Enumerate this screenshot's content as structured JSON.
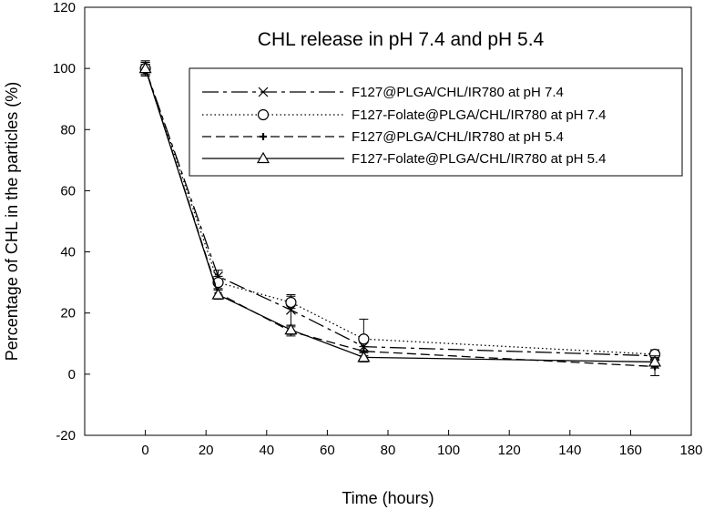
{
  "chart_data": {
    "type": "line",
    "title": "CHL release in pH 7.4 and pH 5.4",
    "xlabel": "Time (hours)",
    "ylabel": "Percentage of CHL in the particles (%)",
    "xlim": [
      -20,
      180
    ],
    "ylim": [
      -20,
      120
    ],
    "xticks": [
      0,
      20,
      40,
      60,
      80,
      100,
      120,
      140,
      160,
      180
    ],
    "yticks": [
      -20,
      0,
      20,
      40,
      60,
      80,
      100,
      120
    ],
    "legend_position": "top-right",
    "series": [
      {
        "name": "F127@PLGA/CHL/IR780 at pH 7.4",
        "marker": "x",
        "dash": "longdash-dot",
        "x": [
          0,
          24,
          48,
          72,
          168
        ],
        "y": [
          100,
          32,
          21,
          9,
          6
        ],
        "err": [
          2,
          2,
          5,
          3,
          1.5
        ]
      },
      {
        "name": "F127-Folate@PLGA/CHL/IR780 at pH 7.4",
        "marker": "circle",
        "dash": "dotted",
        "x": [
          0,
          24,
          48,
          72,
          168
        ],
        "y": [
          100,
          30,
          23.5,
          11.5,
          6.5
        ],
        "err": [
          2.5,
          2,
          2,
          6.5,
          1.5
        ]
      },
      {
        "name": "F127@PLGA/CHL/IR780 at pH 5.4",
        "marker": "plus",
        "dash": "dashed",
        "x": [
          0,
          24,
          48,
          72,
          168
        ],
        "y": [
          100,
          26.5,
          14,
          7.5,
          2.5
        ],
        "err": [
          2,
          1.5,
          1.5,
          1.5,
          3
        ]
      },
      {
        "name": "F127-Folate@PLGA/CHL/IR780 at pH 5.4",
        "marker": "triangle",
        "dash": "solid",
        "x": [
          0,
          24,
          48,
          72,
          168
        ],
        "y": [
          100,
          26,
          14.5,
          5.5,
          4
        ],
        "err": [
          2,
          1.5,
          1.5,
          1.5,
          2
        ]
      }
    ]
  }
}
